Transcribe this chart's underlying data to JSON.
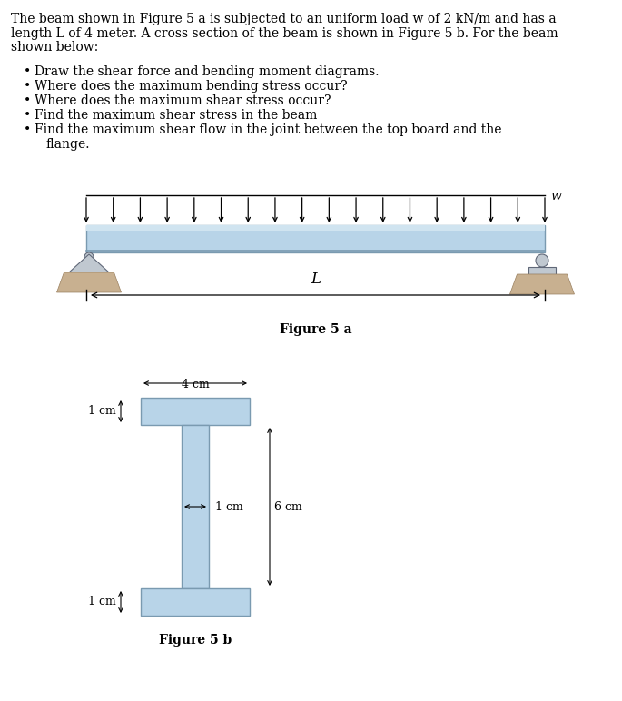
{
  "title_lines": [
    "The beam shown in Figure 5 a is subjected to an uniform load w of 2 kN/m and has a",
    "length L of 4 meter. A cross section of the beam is shown in Figure 5 b. For the beam",
    "shown below:"
  ],
  "bullet_lines": [
    "Draw the shear force and bending moment diagrams.",
    "Where does the maximum bending stress occur?",
    "Where does the maximum shear stress occur?",
    "Find the maximum shear stress in the beam",
    "Find the maximum shear flow in the joint between the top board and the",
    "flange."
  ],
  "bullet_continued": [
    false,
    false,
    false,
    false,
    false,
    true
  ],
  "figure5a_label": "Figure 5 a",
  "figure5b_label": "Figure 5 b",
  "w_label": "w",
  "L_label": "L",
  "dim_4cm": "4 cm",
  "dim_1cm_top": "1 cm",
  "dim_1cm_web": "1 cm",
  "dim_6cm": "6 cm",
  "dim_1cm_bot": "1 cm",
  "beam_color": "#b8d4e8",
  "beam_stroke": "#7a9ab0",
  "beam_top_color": "#d0e4f0",
  "support_color": "#c8aa80",
  "support_stroke": "#8b7355",
  "ground_color": "#c8b090",
  "bg_color": "#ffffff",
  "text_color": "#000000",
  "arrow_color": "#000000",
  "font_size_body": 10,
  "font_size_dim": 9,
  "font_size_fig": 10
}
